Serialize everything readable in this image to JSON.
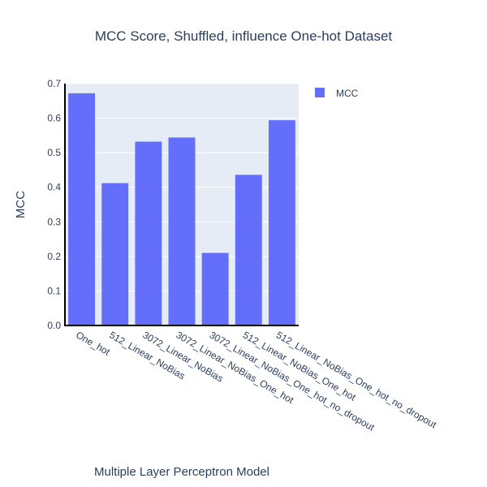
{
  "chart_data": {
    "type": "bar",
    "title": "MCC Score, Shuffled, influence One-hot Dataset",
    "xlabel": "Multiple Layer Perceptron Model",
    "ylabel": "MCC",
    "categories": [
      "One_hot",
      "512_Linear_NoBias",
      "3072_Linear_NoBias",
      "3072_Linear_NoBias_One_hot",
      "3072_Linear_NoBias_One_hot_no_dropout",
      "512_Linear_NoBias_One_hot",
      "512_Linear_NoBias_One_hot_no_dropout"
    ],
    "series": [
      {
        "name": "MCC",
        "values": [
          0.672,
          0.412,
          0.532,
          0.544,
          0.21,
          0.436,
          0.594
        ]
      }
    ],
    "ylim": [
      0,
      0.7
    ],
    "yticks": [
      "0.0",
      "0.1",
      "0.2",
      "0.3",
      "0.4",
      "0.5",
      "0.6",
      "0.7"
    ],
    "grid": true,
    "legend_position": "top-right",
    "colors": {
      "bar": "#636efa",
      "plot_bg": "#e5ecf6",
      "grid": "#ffffff",
      "text": "#2a3f5f",
      "axis_line": "#000000"
    }
  }
}
